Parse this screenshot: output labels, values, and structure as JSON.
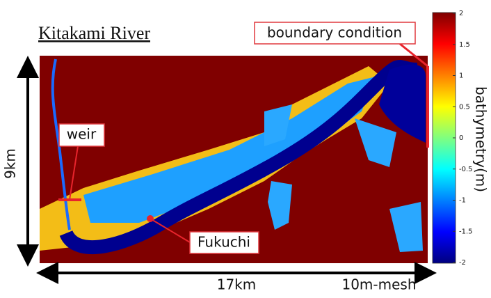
{
  "title": "Kitakami River",
  "annotations": {
    "boundary": "boundary condition",
    "weir": "weir",
    "point": "Fukuchi"
  },
  "dimensions": {
    "height": "9km",
    "width": "17km",
    "mesh": "10m-mesh"
  },
  "colorbar": {
    "label": "bathymetry(m)",
    "lim": [
      -2,
      2
    ],
    "ticks": [
      2,
      1.5,
      1,
      0.5,
      0,
      -0.5,
      -1,
      -1.5,
      -2
    ]
  }
}
